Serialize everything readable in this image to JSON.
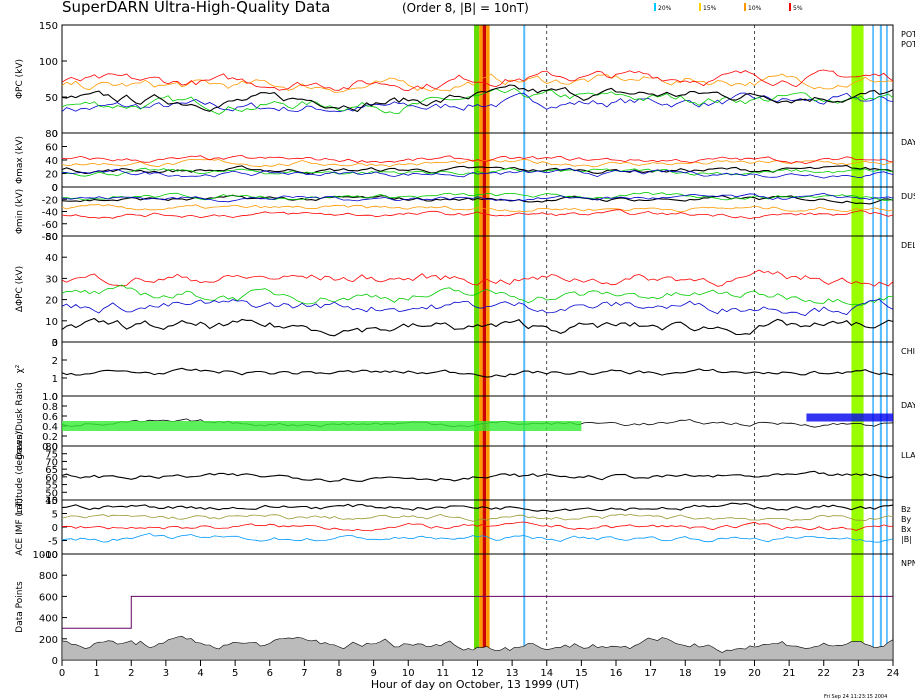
{
  "header": {
    "title": "SuperDARN Ultra-High-Quality Data",
    "order_label": "(Order 8, |B| = 10nT)",
    "legend": [
      {
        "label": "20%",
        "color": "#00c8ff"
      },
      {
        "label": "15%",
        "color": "#ffd000"
      },
      {
        "label": "10%",
        "color": "#ff9900"
      },
      {
        "label": "5%",
        "color": "#ff0000"
      }
    ]
  },
  "footer": {
    "xlabel": "Hour of day on October, 13 1999 (UT)",
    "timestamp": "Fri Sep 24 11:23:15 2004"
  },
  "chart_data": [
    {
      "id": "pc",
      "type": "line",
      "ylabel": "ΦPC (kV)",
      "ylim": [
        0,
        150
      ],
      "yticks": [
        "150",
        "100",
        "50",
        "0"
      ],
      "right_labels": [
        "POT",
        "POT"
      ],
      "series": [
        {
          "name": "blue",
          "color": "#0000cc",
          "level": 35
        },
        {
          "name": "green",
          "color": "#00cc00",
          "level": 40
        },
        {
          "name": "black",
          "color": "#000000",
          "level": 45
        },
        {
          "name": "orange",
          "color": "#ff9900",
          "level": 65
        },
        {
          "name": "red",
          "color": "#ff0000",
          "level": 70
        }
      ],
      "notes": "Black/blue traces ~35-45 kV 00-11 UT, rise to ~70 kV near 11 UT, ~50 kV afterwards; orange/red ~65-70 kV"
    },
    {
      "id": "max",
      "type": "line",
      "ylabel": "Φmax (kV)",
      "ylim": [
        0,
        80
      ],
      "yticks": [
        "80",
        "60",
        "40",
        "20",
        "0"
      ],
      "right_labels": [
        "DAY"
      ],
      "series": [
        {
          "name": "black",
          "color": "#000000",
          "level": 25
        },
        {
          "name": "green",
          "color": "#00cc00",
          "level": 22
        },
        {
          "name": "blue",
          "color": "#0000cc",
          "level": 20
        },
        {
          "name": "orange",
          "color": "#ff9900",
          "level": 35
        },
        {
          "name": "red",
          "color": "#ff0000",
          "level": 40
        }
      ]
    },
    {
      "id": "min",
      "type": "line",
      "ylabel": "Φmin (kV)",
      "ylim": [
        -80,
        0
      ],
      "yticks": [
        "0",
        "-20",
        "-40",
        "-60",
        "-80"
      ],
      "right_labels": [
        "DUS"
      ],
      "series": [
        {
          "name": "black",
          "color": "#000000",
          "level": -20
        },
        {
          "name": "green",
          "color": "#00cc00",
          "level": -15
        },
        {
          "name": "blue",
          "color": "#0000cc",
          "level": -18
        },
        {
          "name": "orange",
          "color": "#ff9900",
          "level": -35
        },
        {
          "name": "red",
          "color": "#ff0000",
          "level": -45
        }
      ]
    },
    {
      "id": "dpc",
      "type": "line",
      "ylabel": "ΔΦPC (kV)",
      "ylim": [
        0,
        50
      ],
      "yticks": [
        "50",
        "40",
        "30",
        "20",
        "10",
        "0"
      ],
      "right_labels": [
        "DEL"
      ],
      "series": [
        {
          "name": "red",
          "color": "#ff0000",
          "level": 30
        },
        {
          "name": "green",
          "color": "#00cc00",
          "level": 22
        },
        {
          "name": "blue",
          "color": "#0000cc",
          "level": 17
        },
        {
          "name": "black",
          "color": "#000000",
          "level": 7
        }
      ]
    },
    {
      "id": "chi",
      "type": "line",
      "ylabel": "χ²",
      "ylim": [
        0,
        3
      ],
      "yticks": [
        "3",
        "2",
        "1",
        "0"
      ],
      "right_labels": [
        "CHI"
      ],
      "series": [
        {
          "name": "black",
          "color": "#000000",
          "level": 1.3
        }
      ]
    },
    {
      "id": "ratio",
      "type": "area",
      "ylabel": "Dawn/Dusk Ratio",
      "ylim": [
        0,
        1
      ],
      "yticks": [
        "1.0",
        "0.8",
        "0.6",
        "0.4",
        "0.2",
        "0.0"
      ],
      "right_labels": [
        "DAY"
      ],
      "series": [
        {
          "name": "black",
          "color": "#000000",
          "level": 0.45
        }
      ]
    },
    {
      "id": "lat",
      "type": "line",
      "ylabel": "Latitude (degrees)",
      "ylim": [
        45,
        80
      ],
      "yticks": [
        "80",
        "75",
        "70",
        "65",
        "60",
        "55",
        "50",
        "45"
      ],
      "right_labels": [
        "LLA"
      ],
      "series": [
        {
          "name": "black",
          "color": "#000000",
          "level": 60
        }
      ]
    },
    {
      "id": "imf",
      "type": "line",
      "ylabel": "ACE IMF (nT)",
      "ylim": [
        -12,
        12
      ],
      "yticks": [
        "10",
        "5",
        "0",
        "-5",
        "-10"
      ],
      "right_labels": [
        "Bz",
        "By",
        "Bx",
        "|B|"
      ],
      "series": [
        {
          "name": "|B|",
          "color": "#000000",
          "level": 9
        },
        {
          "name": "By",
          "color": "#999933",
          "level": 4
        },
        {
          "name": "Bz",
          "color": "#ff0000",
          "level": 0
        },
        {
          "name": "Bx",
          "color": "#0099ff",
          "level": -5
        }
      ]
    },
    {
      "id": "npts",
      "type": "area",
      "ylabel": "Data Points",
      "ylim": [
        0,
        1000
      ],
      "yticks": [
        "1000",
        "800",
        "600",
        "400",
        "200",
        "0"
      ],
      "right_labels": [
        "NPN"
      ],
      "series": [
        {
          "name": "points",
          "color": "#bbbbbb",
          "level": 150
        },
        {
          "name": "NPNT",
          "color": "#660066",
          "level": 600
        }
      ]
    }
  ],
  "x_axis": {
    "range": [
      0,
      24
    ],
    "ticks": [
      "0",
      "1",
      "2",
      "3",
      "4",
      "5",
      "6",
      "7",
      "8",
      "9",
      "10",
      "11",
      "12",
      "13",
      "14",
      "15",
      "16",
      "17",
      "18",
      "19",
      "20",
      "21",
      "22",
      "23",
      "24"
    ],
    "dashed_hours": [
      14,
      20
    ]
  },
  "markers": {
    "bands": [
      {
        "from": 11.9,
        "to": 12.05,
        "color": "#66dd00"
      },
      {
        "from": 12.05,
        "to": 12.15,
        "color": "#ff9900"
      },
      {
        "from": 12.15,
        "to": 12.25,
        "color": "#cc0000"
      },
      {
        "from": 12.25,
        "to": 12.35,
        "color": "#ff9900"
      },
      {
        "from": 22.8,
        "to": 23.15,
        "color": "#99ff00"
      },
      {
        "from": 23.4,
        "to": 23.45,
        "color": "#55bbff"
      },
      {
        "from": 23.62,
        "to": 23.68,
        "color": "#55bbff"
      },
      {
        "from": 23.8,
        "to": 23.85,
        "color": "#55bbff"
      }
    ],
    "lines": [
      {
        "hour": 13.35,
        "color": "#55bbff"
      }
    ]
  }
}
